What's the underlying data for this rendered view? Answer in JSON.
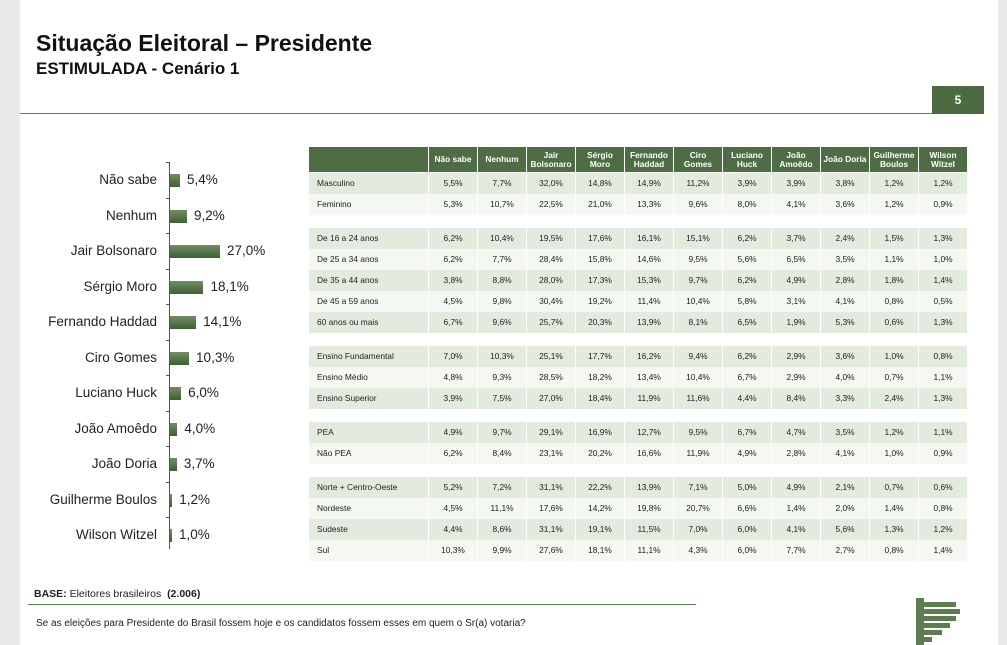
{
  "title": "Situação Eleitoral – Presidente",
  "subtitle": "ESTIMULADA - Cenário 1",
  "page_number": "5",
  "chart_data": {
    "type": "bar",
    "orientation": "horizontal",
    "categories": [
      "Não sabe",
      "Nenhum",
      "Jair Bolsonaro",
      "Sérgio Moro",
      "Fernando Haddad",
      "Ciro Gomes",
      "Luciano Huck",
      "João Amoêdo",
      "João Doria",
      "Guilherme Boulos",
      "Wilson Witzel"
    ],
    "values": [
      5.4,
      9.2,
      27.0,
      18.1,
      14.1,
      10.3,
      6.0,
      4.0,
      3.7,
      1.2,
      1.0
    ],
    "labels": [
      "5,4%",
      "9,2%",
      "27,0%",
      "18,1%",
      "14,1%",
      "10,3%",
      "6,0%",
      "4,0%",
      "3,7%",
      "1,2%",
      "1,0%"
    ],
    "color": "#4f6d45"
  },
  "table": {
    "columns": [
      "Não sabe",
      "Nenhum",
      "Jair Bolsonaro",
      "Sérgio Moro",
      "Fernando Haddad",
      "Ciro Gomes",
      "Luciano Huck",
      "João Amoêdo",
      "João Doria",
      "Guilherme Boulos",
      "Wilson Witzel"
    ],
    "groups": [
      [
        {
          "label": "Masculino",
          "values": [
            "5,5%",
            "7,7%",
            "32,0%",
            "14,8%",
            "14,9%",
            "11,2%",
            "3,9%",
            "3,9%",
            "3,8%",
            "1,2%",
            "1,2%"
          ]
        },
        {
          "label": "Feminino",
          "values": [
            "5,3%",
            "10,7%",
            "22,5%",
            "21,0%",
            "13,3%",
            "9,6%",
            "8,0%",
            "4,1%",
            "3,6%",
            "1,2%",
            "0,9%"
          ]
        }
      ],
      [
        {
          "label": "De 16 a 24 anos",
          "values": [
            "6,2%",
            "10,4%",
            "19,5%",
            "17,6%",
            "16,1%",
            "15,1%",
            "6,2%",
            "3,7%",
            "2,4%",
            "1,5%",
            "1,3%"
          ]
        },
        {
          "label": "De 25 a 34 anos",
          "values": [
            "6,2%",
            "7,7%",
            "28,4%",
            "15,8%",
            "14,6%",
            "9,5%",
            "5,6%",
            "6,5%",
            "3,5%",
            "1,1%",
            "1,0%"
          ]
        },
        {
          "label": "De 35 a 44 anos",
          "values": [
            "3,8%",
            "8,8%",
            "28,0%",
            "17,3%",
            "15,3%",
            "9,7%",
            "6,2%",
            "4,9%",
            "2,8%",
            "1,8%",
            "1,4%"
          ]
        },
        {
          "label": "De 45 a 59 anos",
          "values": [
            "4,5%",
            "9,8%",
            "30,4%",
            "19,2%",
            "11,4%",
            "10,4%",
            "5,8%",
            "3,1%",
            "4,1%",
            "0,8%",
            "0,5%"
          ]
        },
        {
          "label": "60 anos ou mais",
          "values": [
            "6,7%",
            "9,6%",
            "25,7%",
            "20,3%",
            "13,9%",
            "8,1%",
            "6,5%",
            "1,9%",
            "5,3%",
            "0,6%",
            "1,3%"
          ]
        }
      ],
      [
        {
          "label": "Ensino Fundamental",
          "values": [
            "7,0%",
            "10,3%",
            "25,1%",
            "17,7%",
            "16,2%",
            "9,4%",
            "6,2%",
            "2,9%",
            "3,6%",
            "1,0%",
            "0,8%"
          ]
        },
        {
          "label": "Ensino Médio",
          "values": [
            "4,8%",
            "9,3%",
            "28,5%",
            "18,2%",
            "13,4%",
            "10,4%",
            "6,7%",
            "2,9%",
            "4,0%",
            "0,7%",
            "1,1%"
          ]
        },
        {
          "label": "Ensino Superior",
          "values": [
            "3,9%",
            "7,5%",
            "27,0%",
            "18,4%",
            "11,9%",
            "11,6%",
            "4,4%",
            "8,4%",
            "3,3%",
            "2,4%",
            "1,3%"
          ]
        }
      ],
      [
        {
          "label": "PEA",
          "values": [
            "4,9%",
            "9,7%",
            "29,1%",
            "16,9%",
            "12,7%",
            "9,5%",
            "6,7%",
            "4,7%",
            "3,5%",
            "1,2%",
            "1,1%"
          ]
        },
        {
          "label": "Não PEA",
          "values": [
            "6,2%",
            "8,4%",
            "23,1%",
            "20,2%",
            "16,6%",
            "11,9%",
            "4,9%",
            "2,8%",
            "4,1%",
            "1,0%",
            "0,9%"
          ]
        }
      ],
      [
        {
          "label": "Norte + Centro-Oeste",
          "values": [
            "5,2%",
            "7,2%",
            "31,1%",
            "22,2%",
            "13,9%",
            "7,1%",
            "5,0%",
            "4,9%",
            "2,1%",
            "0,7%",
            "0,6%"
          ]
        },
        {
          "label": "Nordeste",
          "values": [
            "4,5%",
            "11,1%",
            "17,6%",
            "14,2%",
            "19,8%",
            "20,7%",
            "6,6%",
            "1,4%",
            "2,0%",
            "1,4%",
            "0,8%"
          ]
        },
        {
          "label": "Sudeste",
          "values": [
            "4,4%",
            "8,6%",
            "31,1%",
            "19,1%",
            "11,5%",
            "7,0%",
            "6,0%",
            "4,1%",
            "5,6%",
            "1,3%",
            "1,2%"
          ]
        },
        {
          "label": "Sul",
          "values": [
            "10,3%",
            "9,9%",
            "27,6%",
            "18,1%",
            "11,1%",
            "4,3%",
            "6,0%",
            "7,7%",
            "2,7%",
            "0,8%",
            "1,4%"
          ]
        }
      ]
    ]
  },
  "base": {
    "label": "BASE:",
    "text": "Eleitores brasileiros",
    "count": "(2.006)"
  },
  "question": "Se as eleições para Presidente do Brasil fossem hoje e os candidatos fossem esses em quem o Sr(a) votaria?"
}
